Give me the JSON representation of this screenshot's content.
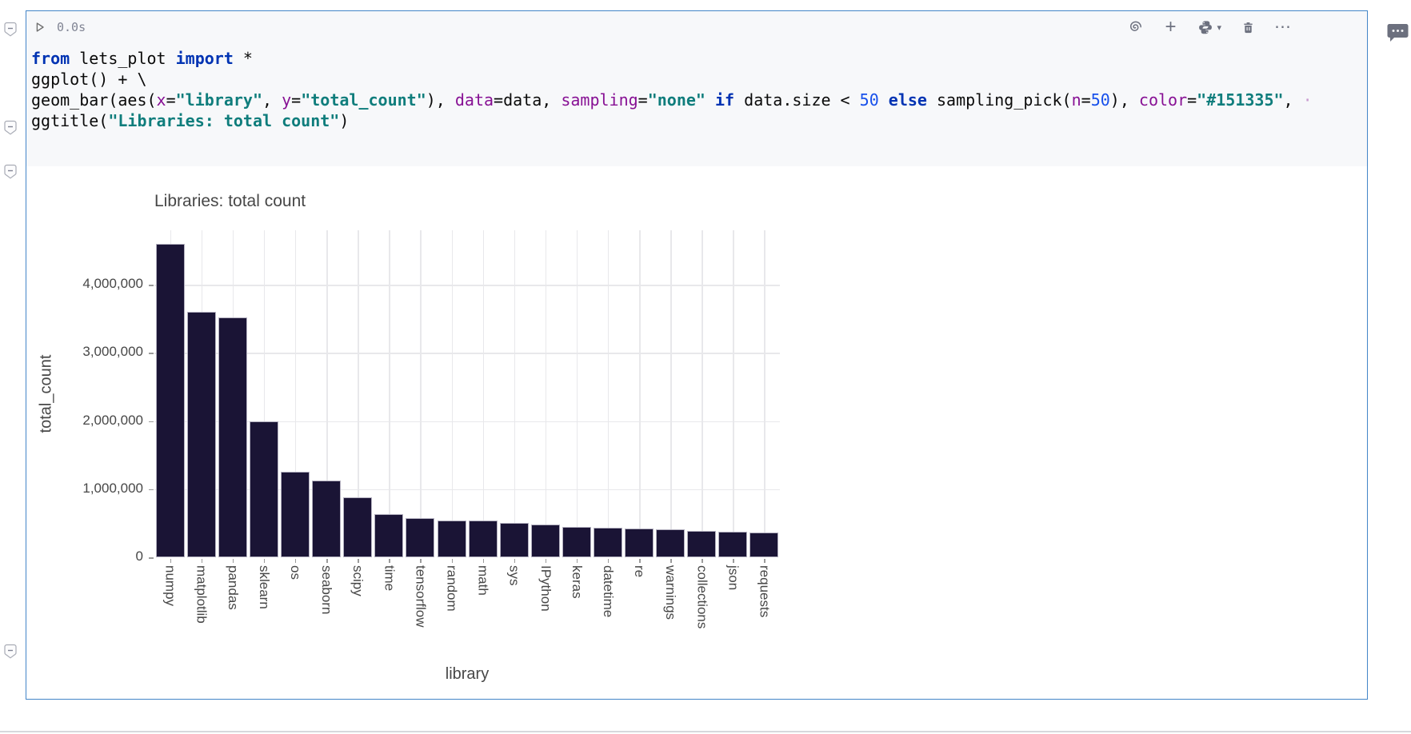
{
  "cell": {
    "border_color": "#4385C8",
    "toolbar": {
      "exec_time": "0.0s",
      "plus_glyph": "+",
      "more_glyph": "⋯",
      "chevron_glyph": "▾",
      "icons": [
        "run-icon",
        "ai-swirl-icon",
        "add-cell-icon",
        "python-interpreter-icon",
        "chevron-down-icon",
        "delete-cell-icon",
        "more-actions-icon"
      ]
    },
    "code": {
      "lines": [
        [
          [
            "k",
            "from"
          ],
          [
            "p",
            " lets_plot "
          ],
          [
            "k",
            "import"
          ],
          [
            "p",
            " *"
          ]
        ],
        [
          [
            "p",
            "ggplot() + \\"
          ]
        ],
        [
          [
            "p",
            "geom_bar(aes("
          ],
          [
            "v",
            "x"
          ],
          [
            "p",
            "="
          ],
          [
            "s",
            "\"library\""
          ],
          [
            "p",
            ", "
          ],
          [
            "v",
            "y"
          ],
          [
            "p",
            "="
          ],
          [
            "s",
            "\"total_count\""
          ],
          [
            "p",
            "), "
          ],
          [
            "v",
            "data"
          ],
          [
            "p",
            "=data, "
          ],
          [
            "v",
            "sampling"
          ],
          [
            "p",
            "="
          ],
          [
            "s",
            "\"none\""
          ],
          [
            "p",
            " "
          ],
          [
            "k",
            "if"
          ],
          [
            "p",
            " data.size < "
          ],
          [
            "n",
            "50"
          ],
          [
            "p",
            " "
          ],
          [
            "k",
            "else"
          ],
          [
            "p",
            " sampling_pick("
          ],
          [
            "v",
            "n"
          ],
          [
            "p",
            "="
          ],
          [
            "n",
            "50"
          ],
          [
            "p",
            "), "
          ],
          [
            "v",
            "color"
          ],
          [
            "p",
            "="
          ],
          [
            "s",
            "\"#151335\""
          ],
          [
            "p",
            ", "
          ],
          [
            "d",
            "·"
          ]
        ],
        [
          [
            "p",
            "ggtitle("
          ],
          [
            "s",
            "\"Libraries: total count\""
          ],
          [
            "p",
            ")"
          ]
        ]
      ]
    }
  },
  "gutter": {
    "markers": [
      "cell-fold-marker",
      "code-fold-marker",
      "output-fold-marker",
      "output-end-fold-marker"
    ]
  },
  "comment_icon": "comment-icon",
  "chart_data": {
    "type": "bar",
    "title": "Libraries: total count",
    "xlabel": "library",
    "ylabel": "total_count",
    "categories": [
      "numpy",
      "matplotlib",
      "pandas",
      "sklearn",
      "os",
      "seaborn",
      "scipy",
      "time",
      "tensorflow",
      "random",
      "math",
      "sys",
      "IPython",
      "keras",
      "datetime",
      "re",
      "warnings",
      "collections",
      "json",
      "requests"
    ],
    "values": [
      4600000,
      3600000,
      3520000,
      2000000,
      1260000,
      1130000,
      885000,
      635000,
      575000,
      540000,
      535000,
      505000,
      480000,
      445000,
      435000,
      420000,
      415000,
      385000,
      380000,
      365000
    ],
    "yticks": [
      0,
      1000000,
      2000000,
      3000000,
      4000000
    ],
    "ytick_labels": [
      "0",
      "1,000,000",
      "2,000,000",
      "3,000,000",
      "4,000,000"
    ],
    "ylim": [
      0,
      4800000
    ],
    "grid": true,
    "legend": "none",
    "bar_fill": "#1A1435",
    "bar_stroke": "#B3B0BF",
    "text_color": "#474747",
    "grid_color": "#E8E8EB"
  }
}
